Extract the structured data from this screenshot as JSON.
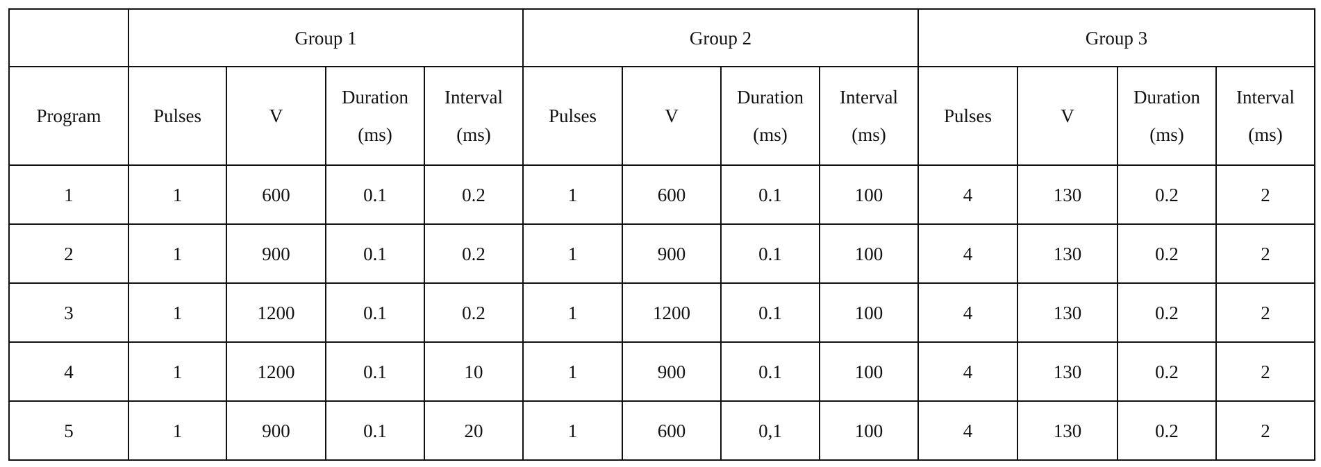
{
  "table": {
    "groups": [
      "Group 1",
      "Group 2",
      "Group 3"
    ],
    "columns": [
      "Program",
      "Pulses",
      "V",
      "Duration (ms)",
      "Interval (ms)",
      "Pulses",
      "V",
      "Duration (ms)",
      "Interval (ms)",
      "Pulses",
      "V",
      "Duration (ms)",
      "Interval (ms)"
    ],
    "rows": [
      [
        "1",
        "1",
        "600",
        "0.1",
        "0.2",
        "1",
        "600",
        "0.1",
        "100",
        "4",
        "130",
        "0.2",
        "2"
      ],
      [
        "2",
        "1",
        "900",
        "0.1",
        "0.2",
        "1",
        "900",
        "0.1",
        "100",
        "4",
        "130",
        "0.2",
        "2"
      ],
      [
        "3",
        "1",
        "1200",
        "0.1",
        "0.2",
        "1",
        "1200",
        "0.1",
        "100",
        "4",
        "130",
        "0.2",
        "2"
      ],
      [
        "4",
        "1",
        "1200",
        "0.1",
        "10",
        "1",
        "900",
        "0.1",
        "100",
        "4",
        "130",
        "0.2",
        "2"
      ],
      [
        "5",
        "1",
        "900",
        "0.1",
        "20",
        "1",
        "600",
        "0,1",
        "100",
        "4",
        "130",
        "0.2",
        "2"
      ]
    ]
  }
}
